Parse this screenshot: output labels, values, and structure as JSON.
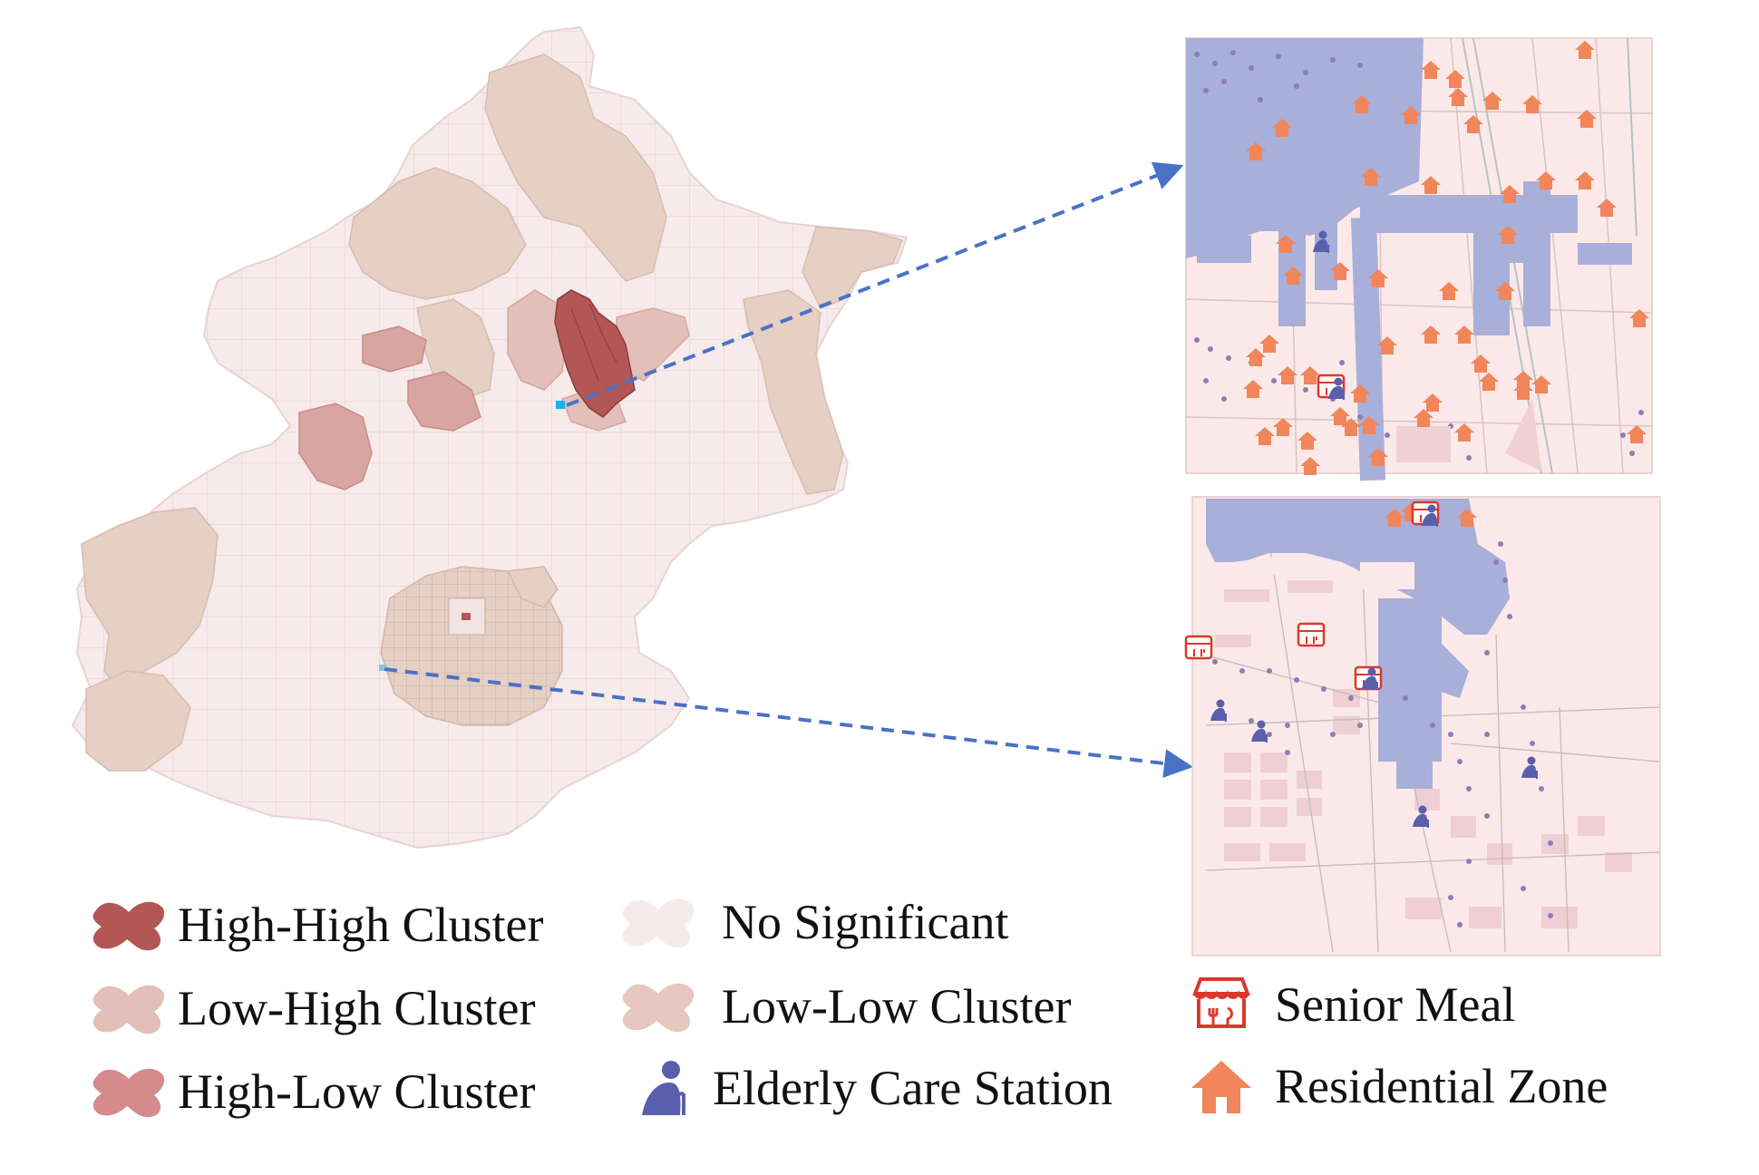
{
  "legend": {
    "high_high": "High-High Cluster",
    "low_high": "Low-High Cluster",
    "high_low": "High-Low Cluster",
    "no_significant": "No Significant",
    "low_low": "Low-Low Cluster",
    "elderly_care": "Elderly Care Station",
    "senior_meal": "Senior Meal",
    "residential": "Residential Zone"
  },
  "colors": {
    "high_high": "#b25656",
    "low_high": "#e2bfb8",
    "high_low": "#d48b8b",
    "no_significant": "#f7eaea",
    "low_low": "#e6cfc3",
    "elderly_care_icon": "#5a5fad",
    "senior_meal_icon": "#d9392b",
    "residential_icon": "#f0865a",
    "inset_background": "#fbe9ea",
    "built_area": "#a8afd8",
    "arrow": "#4a72c4"
  },
  "icons": {
    "elderly_care": "elderly-person-icon",
    "senior_meal": "storefront-meal-icon",
    "residential": "house-icon"
  }
}
